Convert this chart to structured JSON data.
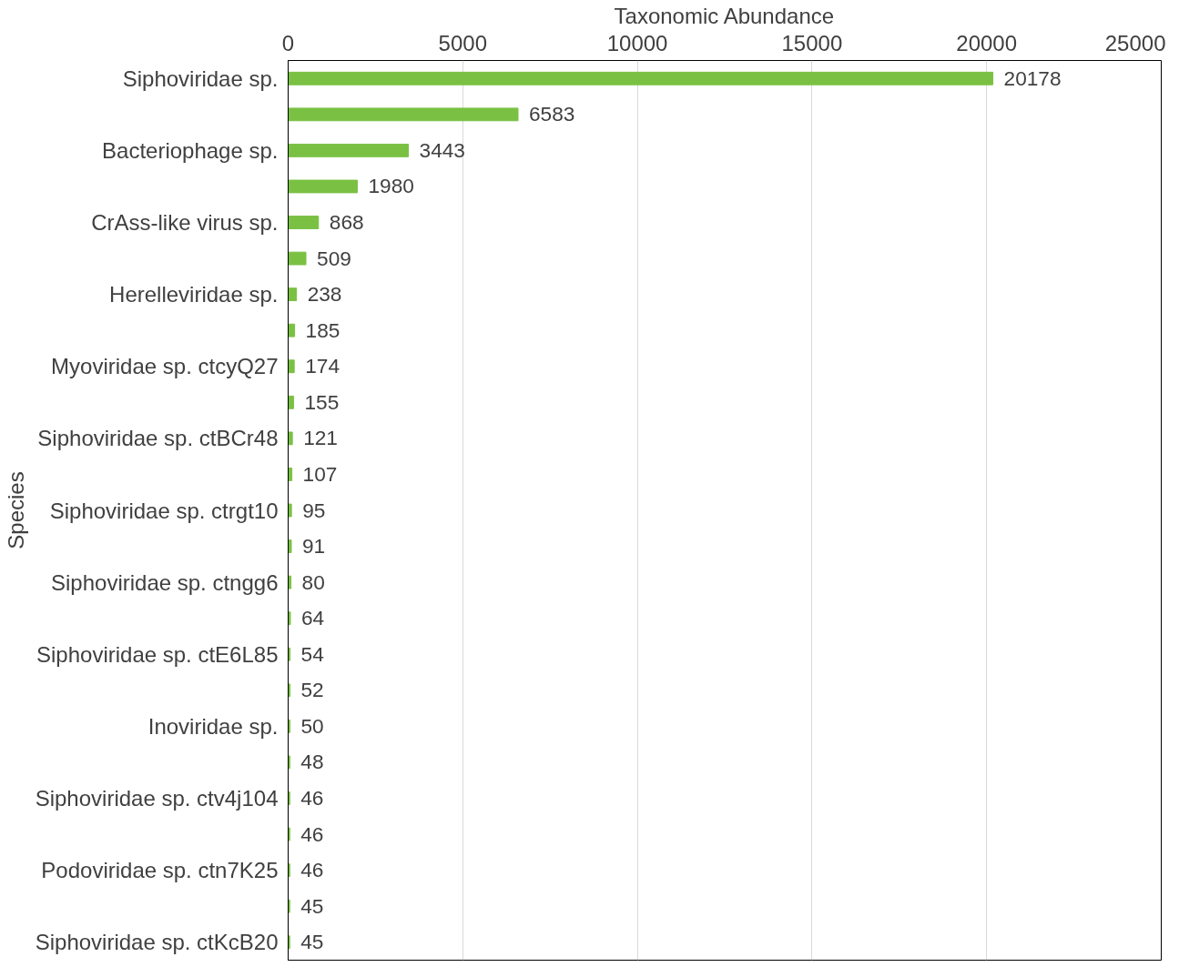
{
  "chart_data": {
    "type": "bar",
    "orientation": "horizontal",
    "xlabel": "Taxonomic Abundance",
    "ylabel": "Species",
    "categories": [
      "Siphoviridae sp.",
      null,
      "Bacteriophage sp.",
      null,
      "CrAss-like virus sp.",
      null,
      "Herelleviridae sp.",
      null,
      "Myoviridae sp. ctcyQ27",
      null,
      "Siphoviridae sp. ctBCr48",
      null,
      "Siphoviridae sp. ctrgt10",
      null,
      "Siphoviridae sp. ctngg6",
      null,
      "Siphoviridae sp. ctE6L85",
      null,
      "Inoviridae sp.",
      null,
      "Siphoviridae sp. ctv4j104",
      null,
      "Podoviridae sp. ctn7K25",
      null,
      "Siphoviridae sp. ctKcB20"
    ],
    "values": [
      20178,
      6583,
      3443,
      1980,
      868,
      509,
      238,
      185,
      174,
      155,
      121,
      107,
      95,
      91,
      80,
      64,
      54,
      52,
      50,
      48,
      46,
      46,
      46,
      45,
      45
    ],
    "color": "#7ac143",
    "xlim": [
      0,
      25000
    ],
    "xticks": [
      0,
      5000,
      10000,
      15000,
      20000,
      25000
    ],
    "grid": "x",
    "data_labels": true
  }
}
